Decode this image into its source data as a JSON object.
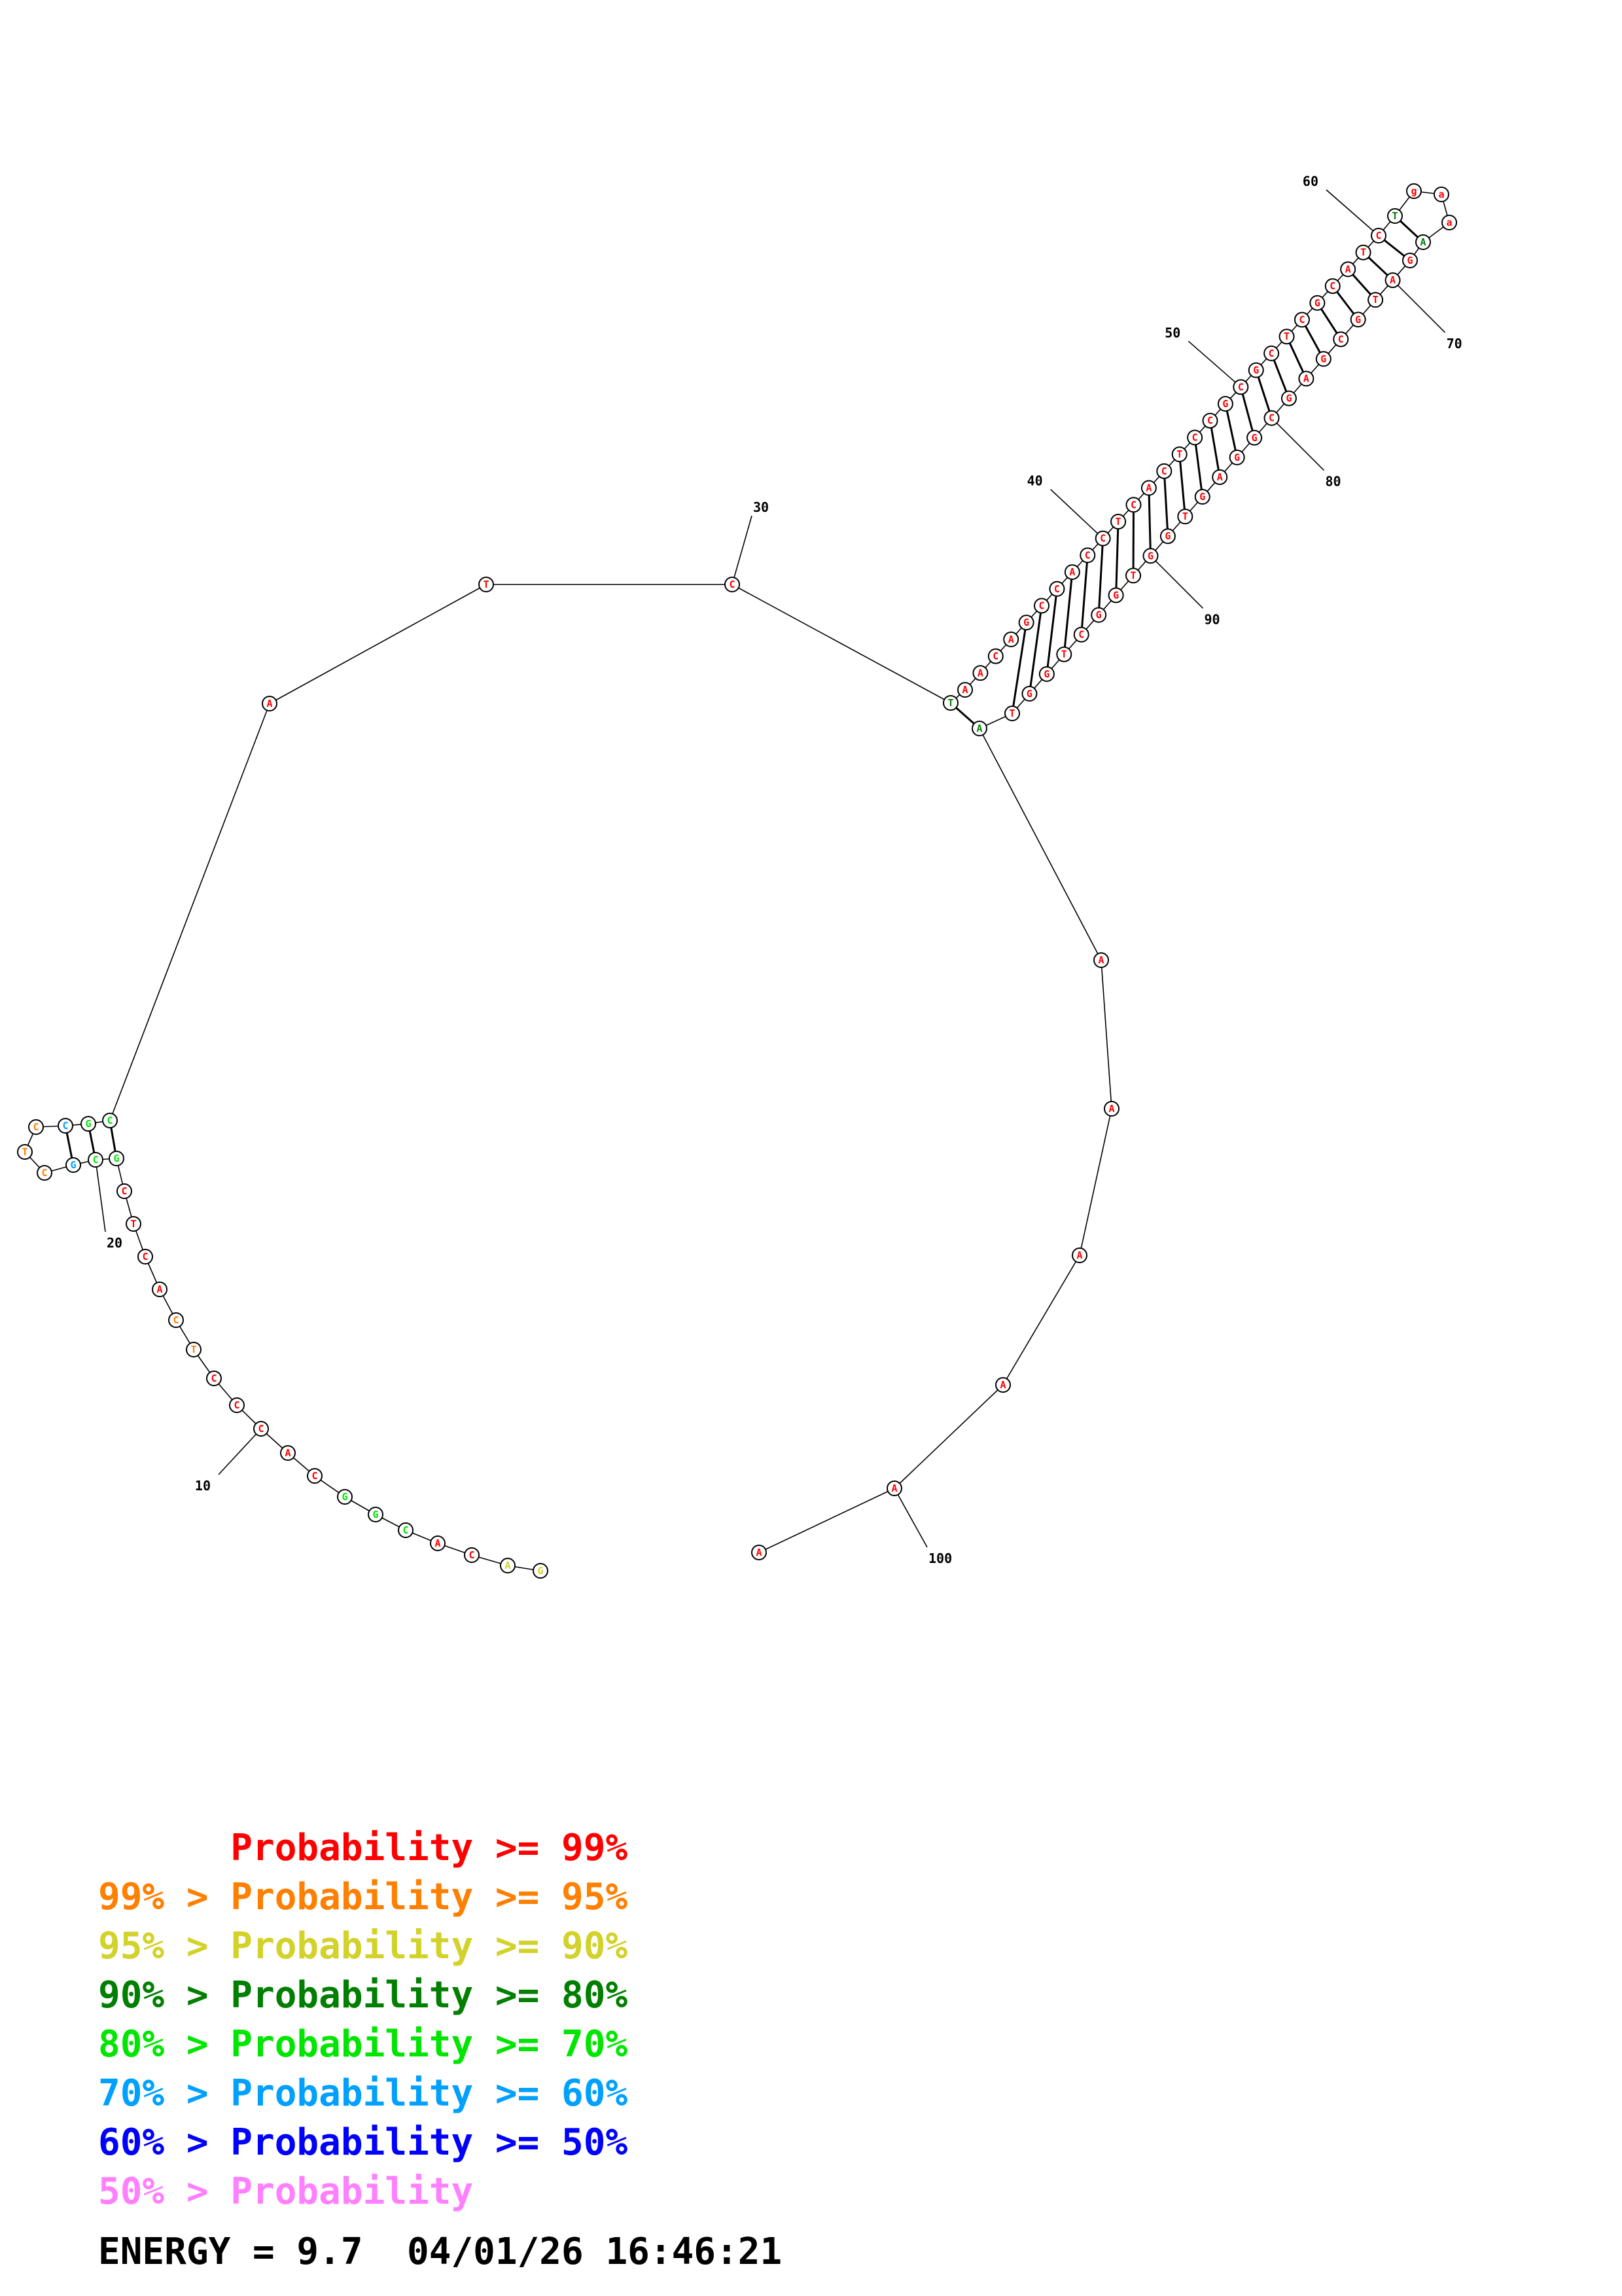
{
  "colors": {
    "p99": "#ff0000",
    "p95": "#ff7f00",
    "p90": "#d2d22a",
    "p80": "#007f00",
    "p70": "#00e600",
    "p60": "#00a0ff",
    "p50": "#0000ff",
    "plow": "#ff80ff"
  },
  "diagram": {
    "nucleotides": [
      {
        "n": 1,
        "base": "G",
        "prob": "p90"
      },
      {
        "n": 2,
        "base": "A",
        "prob": "p90"
      },
      {
        "n": 3,
        "base": "C",
        "prob": "p99"
      },
      {
        "n": 4,
        "base": "A",
        "prob": "p99"
      },
      {
        "n": 5,
        "base": "C",
        "prob": "p70"
      },
      {
        "n": 6,
        "base": "G",
        "prob": "p70"
      },
      {
        "n": 7,
        "base": "G",
        "prob": "p70"
      },
      {
        "n": 8,
        "base": "C",
        "prob": "p99"
      },
      {
        "n": 9,
        "base": "A",
        "prob": "p99"
      },
      {
        "n": 10,
        "base": "C",
        "prob": "p99"
      },
      {
        "n": 11,
        "base": "C",
        "prob": "p99"
      },
      {
        "n": 12,
        "base": "C",
        "prob": "p99"
      },
      {
        "n": 13,
        "base": "T",
        "prob": "p95"
      },
      {
        "n": 14,
        "base": "C",
        "prob": "p95"
      },
      {
        "n": 15,
        "base": "A",
        "prob": "p99"
      },
      {
        "n": 16,
        "base": "C",
        "prob": "p99"
      },
      {
        "n": 17,
        "base": "T",
        "prob": "p99"
      },
      {
        "n": 18,
        "base": "C",
        "prob": "p99"
      },
      {
        "n": 19,
        "base": "G",
        "prob": "p70"
      },
      {
        "n": 20,
        "base": "C",
        "prob": "p70"
      },
      {
        "n": 21,
        "base": "G",
        "prob": "p60"
      },
      {
        "n": 22,
        "base": "C",
        "prob": "p95"
      },
      {
        "n": 23,
        "base": "T",
        "prob": "p95"
      },
      {
        "n": 24,
        "base": "C",
        "prob": "p95"
      },
      {
        "n": 25,
        "base": "C",
        "prob": "p60"
      },
      {
        "n": 26,
        "base": "G",
        "prob": "p70"
      },
      {
        "n": 27,
        "base": "C",
        "prob": "p70"
      },
      {
        "n": 28,
        "base": "A",
        "prob": "p99"
      },
      {
        "n": 29,
        "base": "T",
        "prob": "p99"
      },
      {
        "n": 30,
        "base": "C",
        "prob": "p99"
      },
      {
        "n": 31,
        "base": "T",
        "prob": "p80"
      },
      {
        "n": 32,
        "base": "A",
        "prob": "p99"
      },
      {
        "n": 33,
        "base": "A",
        "prob": "p99"
      },
      {
        "n": 34,
        "base": "C",
        "prob": "p99"
      },
      {
        "n": 35,
        "base": "A",
        "prob": "p99"
      },
      {
        "n": 36,
        "base": "G",
        "prob": "p99"
      },
      {
        "n": 37,
        "base": "C",
        "prob": "p99"
      },
      {
        "n": 38,
        "base": "C",
        "prob": "p99"
      },
      {
        "n": 39,
        "base": "A",
        "prob": "p99"
      },
      {
        "n": 40,
        "base": "C",
        "prob": "p99"
      },
      {
        "n": 41,
        "base": "C",
        "prob": "p99"
      },
      {
        "n": 42,
        "base": "T",
        "prob": "p99"
      },
      {
        "n": 43,
        "base": "C",
        "prob": "p99"
      },
      {
        "n": 44,
        "base": "A",
        "prob": "p99"
      },
      {
        "n": 45,
        "base": "C",
        "prob": "p99"
      },
      {
        "n": 46,
        "base": "T",
        "prob": "p99"
      },
      {
        "n": 47,
        "base": "C",
        "prob": "p99"
      },
      {
        "n": 48,
        "base": "C",
        "prob": "p99"
      },
      {
        "n": 49,
        "base": "G",
        "prob": "p99"
      },
      {
        "n": 50,
        "base": "C",
        "prob": "p99"
      },
      {
        "n": 51,
        "base": "G",
        "prob": "p99"
      },
      {
        "n": 52,
        "base": "C",
        "prob": "p99"
      },
      {
        "n": 53,
        "base": "T",
        "prob": "p99"
      },
      {
        "n": 54,
        "base": "C",
        "prob": "p99"
      },
      {
        "n": 55,
        "base": "G",
        "prob": "p99"
      },
      {
        "n": 56,
        "base": "C",
        "prob": "p99"
      },
      {
        "n": 57,
        "base": "A",
        "prob": "p99"
      },
      {
        "n": 58,
        "base": "T",
        "prob": "p99"
      },
      {
        "n": 59,
        "base": "C",
        "prob": "p99"
      },
      {
        "n": 60,
        "base": "T",
        "prob": "p80"
      },
      {
        "n": 61,
        "base": "g",
        "prob": "p99"
      },
      {
        "n": 62,
        "base": "a",
        "prob": "p99"
      },
      {
        "n": 63,
        "base": "a",
        "prob": "p99"
      },
      {
        "n": 64,
        "base": "A",
        "prob": "p80"
      },
      {
        "n": 65,
        "base": "G",
        "prob": "p99"
      },
      {
        "n": 66,
        "base": "A",
        "prob": "p99"
      },
      {
        "n": 67,
        "base": "T",
        "prob": "p99"
      },
      {
        "n": 68,
        "base": "G",
        "prob": "p99"
      },
      {
        "n": 69,
        "base": "C",
        "prob": "p99"
      },
      {
        "n": 70,
        "base": "G",
        "prob": "p99"
      },
      {
        "n": 71,
        "base": "A",
        "prob": "p99"
      },
      {
        "n": 72,
        "base": "G",
        "prob": "p99"
      },
      {
        "n": 73,
        "base": "C",
        "prob": "p99"
      },
      {
        "n": 74,
        "base": "G",
        "prob": "p99"
      },
      {
        "n": 75,
        "base": "G",
        "prob": "p99"
      },
      {
        "n": 76,
        "base": "A",
        "prob": "p99"
      },
      {
        "n": 77,
        "base": "G",
        "prob": "p99"
      },
      {
        "n": 78,
        "base": "T",
        "prob": "p99"
      },
      {
        "n": 79,
        "base": "G",
        "prob": "p99"
      },
      {
        "n": 80,
        "base": "G",
        "prob": "p99"
      },
      {
        "n": 81,
        "base": "T",
        "prob": "p99"
      },
      {
        "n": 82,
        "base": "G",
        "prob": "p99"
      },
      {
        "n": 83,
        "base": "G",
        "prob": "p99"
      },
      {
        "n": 84,
        "base": "C",
        "prob": "p99"
      },
      {
        "n": 85,
        "base": "T",
        "prob": "p99"
      },
      {
        "n": 86,
        "base": "G",
        "prob": "p99"
      },
      {
        "n": 87,
        "base": "G",
        "prob": "p99"
      },
      {
        "n": 88,
        "base": "T",
        "prob": "p99"
      },
      {
        "n": 89,
        "base": "A",
        "prob": "p80"
      },
      {
        "n": 90,
        "base": "A",
        "prob": "p99"
      },
      {
        "n": 91,
        "base": "A",
        "prob": "p99"
      },
      {
        "n": 92,
        "base": "A",
        "prob": "p99"
      },
      {
        "n": 93,
        "base": "A",
        "prob": "p99"
      },
      {
        "n": 94,
        "base": "A",
        "prob": "p99"
      },
      {
        "n": 95,
        "base": "A",
        "prob": "p99"
      }
    ],
    "tick_labels": [
      "10",
      "20",
      "30",
      "40",
      "50",
      "60",
      "70",
      "80",
      "90",
      "100"
    ]
  },
  "legend": [
    {
      "text": "      Probability >= 99%",
      "color": "p99"
    },
    {
      "text": "99% > Probability >= 95%",
      "color": "p95"
    },
    {
      "text": "95% > Probability >= 90%",
      "color": "p90"
    },
    {
      "text": "90% > Probability >= 80%",
      "color": "p80"
    },
    {
      "text": "80% > Probability >= 70%",
      "color": "p70"
    },
    {
      "text": "70% > Probability >= 60%",
      "color": "p60"
    },
    {
      "text": "60% > Probability >= 50%",
      "color": "p50"
    },
    {
      "text": "50% > Probability",
      "color": "plow"
    }
  ],
  "energy": "ENERGY = 9.7  04/01/26 16:46:21"
}
